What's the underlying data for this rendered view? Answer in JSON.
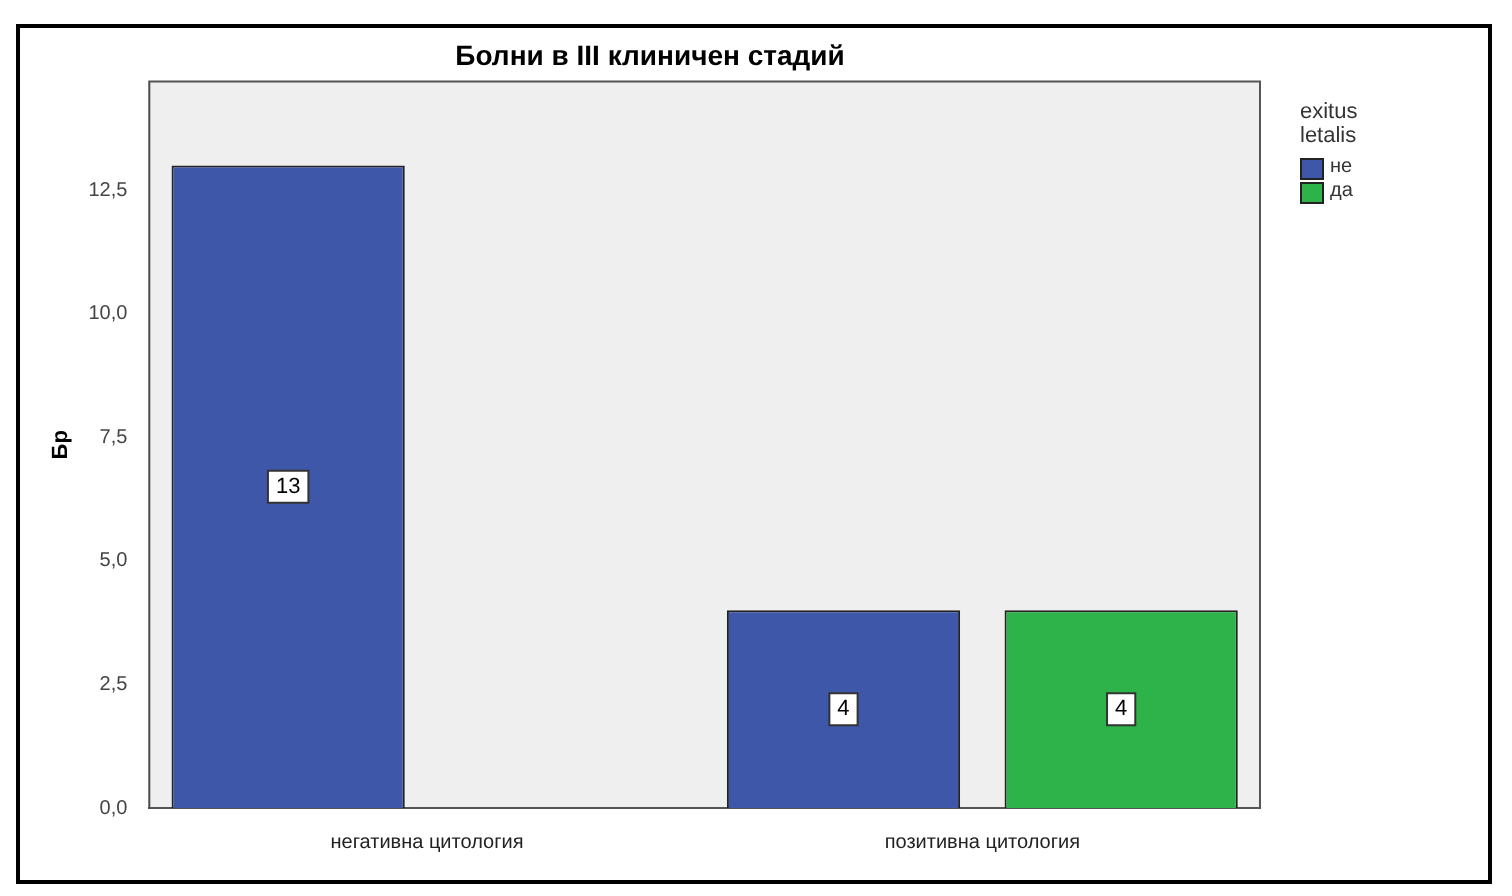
{
  "chart_data": {
    "type": "bar",
    "title": "Болни в III клиничен стадий",
    "ylabel": "Бр",
    "legend_title": "exitus letalis",
    "categories": [
      "негативна цитология",
      "позитивна цитология"
    ],
    "series": [
      {
        "name": "не",
        "color": "#3f57a8",
        "values": [
          13,
          4
        ]
      },
      {
        "name": "да",
        "color": "#2db34a",
        "values": [
          null,
          4
        ]
      }
    ],
    "ylim": [
      0,
      14.7
    ],
    "yticks": [
      {
        "value": 0,
        "label": "0,0"
      },
      {
        "value": 2.5,
        "label": "2,5"
      },
      {
        "value": 5,
        "label": "5,0"
      },
      {
        "value": 7.5,
        "label": "7,5"
      },
      {
        "value": 10,
        "label": "10,0"
      },
      {
        "value": 12.5,
        "label": "12,5"
      }
    ],
    "grid": false,
    "legend": "top right",
    "data_labels": true
  }
}
